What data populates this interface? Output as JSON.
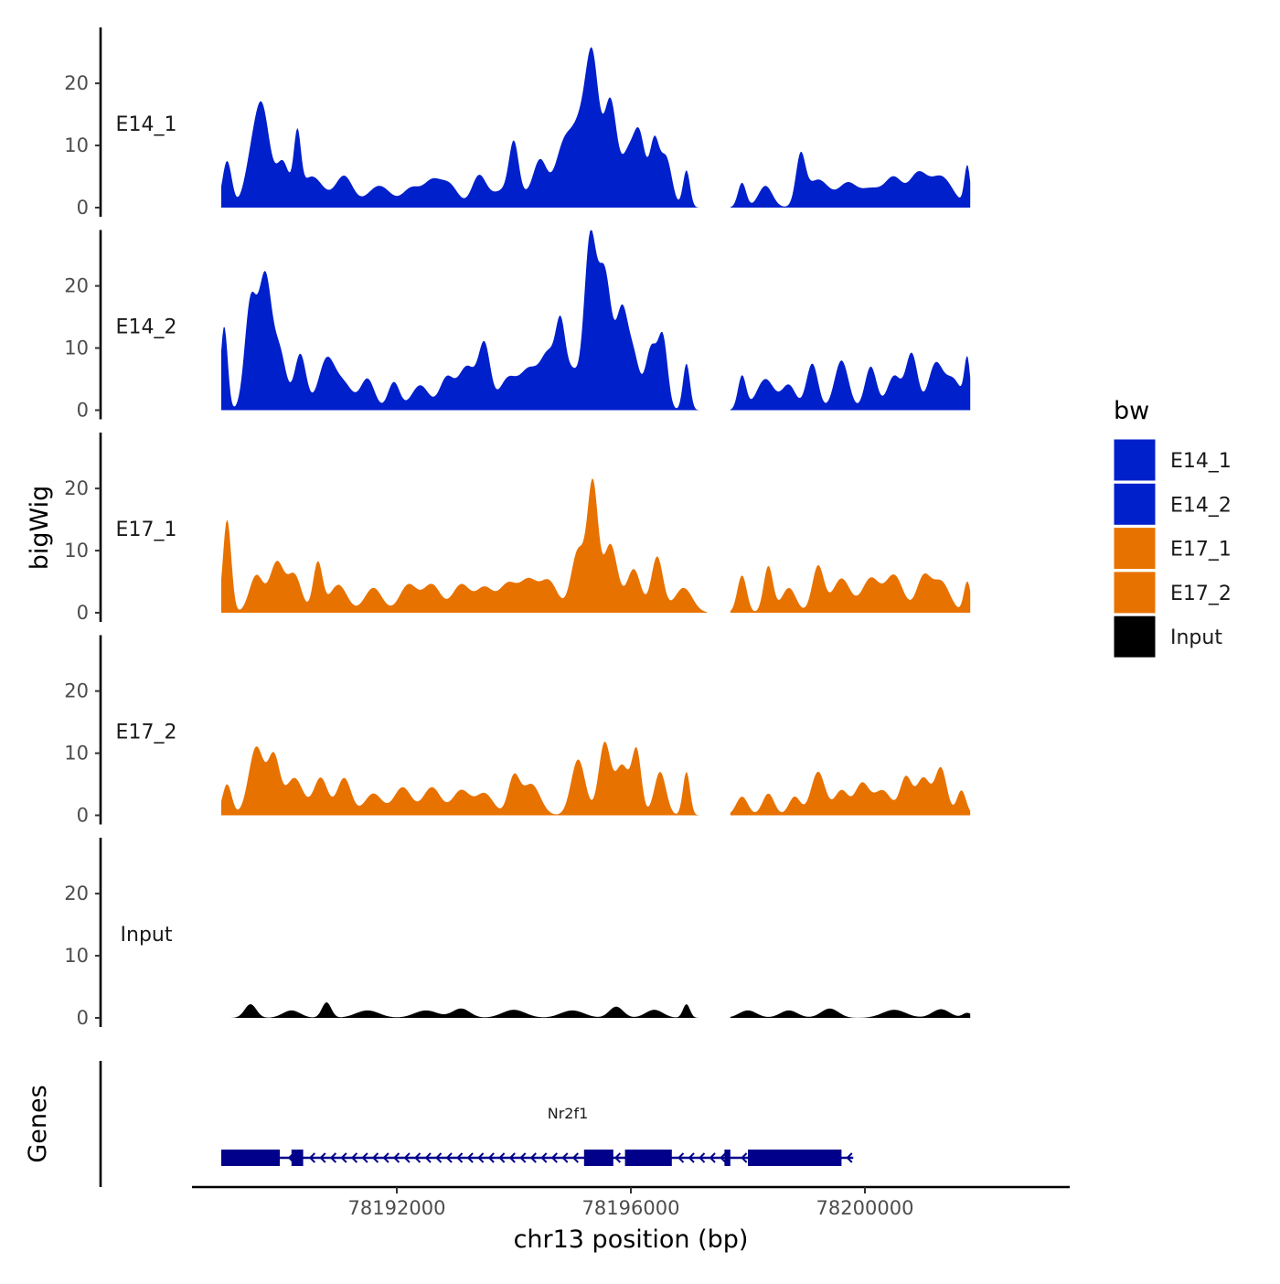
{
  "chart_data": {
    "type": "area",
    "facet_type": "genome-track",
    "ylabel": "bigWig",
    "xlabel": "chr13 position (bp)",
    "x_range": [
      78188500,
      78203500
    ],
    "xticks": [
      78192000,
      78196000,
      78200000
    ],
    "xtick_labels": [
      "78192000",
      "78196000",
      "78200000"
    ],
    "ylim": [
      0,
      29
    ],
    "yticks": [
      0,
      10,
      20
    ],
    "ytick_labels": [
      "0",
      "10",
      "20"
    ],
    "legend": {
      "title": "bw",
      "position": "right",
      "entries": [
        {
          "label": "E14_1",
          "color": "#0020CC"
        },
        {
          "label": "E14_2",
          "color": "#0020CC"
        },
        {
          "label": "E17_1",
          "color": "#E87200"
        },
        {
          "label": "E17_2",
          "color": "#E87200"
        },
        {
          "label": "Input",
          "color": "#000000"
        }
      ]
    },
    "x_start": 78189000,
    "x_end": 78201800,
    "gap": [
      78197300,
      78197700
    ],
    "series": [
      {
        "name": "E14_1",
        "label": "E14_1",
        "color": "#0020CC",
        "peaks": [
          [
            78189100,
            7.5,
            80
          ],
          [
            78189500,
            5.5,
            120
          ],
          [
            78189700,
            15.5,
            130
          ],
          [
            78190050,
            7,
            110
          ],
          [
            78190300,
            10,
            60
          ],
          [
            78190550,
            5,
            200
          ],
          [
            78191100,
            5,
            150
          ],
          [
            78191700,
            3.5,
            200
          ],
          [
            78192250,
            3,
            150
          ],
          [
            78192600,
            4,
            150
          ],
          [
            78192900,
            3.5,
            150
          ],
          [
            78193400,
            4.5,
            120
          ],
          [
            78193900,
            3,
            300
          ],
          [
            78194000,
            8,
            80
          ],
          [
            78194450,
            7,
            120
          ],
          [
            78194850,
            9.5,
            150
          ],
          [
            78195150,
            12,
            150
          ],
          [
            78195350,
            20,
            110
          ],
          [
            78195650,
            17,
            110
          ],
          [
            78195950,
            8,
            110
          ],
          [
            78196150,
            11,
            100
          ],
          [
            78196400,
            10,
            80
          ],
          [
            78196600,
            8,
            100
          ],
          [
            78196950,
            6,
            60
          ],
          [
            78197900,
            4,
            70
          ],
          [
            78198300,
            3.5,
            120
          ],
          [
            78198900,
            7.5,
            80
          ],
          [
            78199200,
            4.5,
            200
          ],
          [
            78199700,
            3.5,
            150
          ],
          [
            78200100,
            3,
            200
          ],
          [
            78200500,
            4.5,
            150
          ],
          [
            78200900,
            5,
            150
          ],
          [
            78201300,
            5,
            200
          ],
          [
            78201750,
            6.5,
            50
          ]
        ]
      },
      {
        "name": "E14_2",
        "label": "E14_2",
        "color": "#0020CC",
        "peaks": [
          [
            78189050,
            13.5,
            60
          ],
          [
            78189500,
            17,
            100
          ],
          [
            78189750,
            21,
            110
          ],
          [
            78190000,
            9,
            110
          ],
          [
            78190350,
            9,
            100
          ],
          [
            78190800,
            8,
            140
          ],
          [
            78191100,
            4,
            150
          ],
          [
            78191500,
            5,
            120
          ],
          [
            78191950,
            4.5,
            100
          ],
          [
            78192400,
            4,
            150
          ],
          [
            78192850,
            5,
            120
          ],
          [
            78193200,
            7,
            150
          ],
          [
            78193500,
            10,
            100
          ],
          [
            78193900,
            5,
            150
          ],
          [
            78194250,
            6,
            150
          ],
          [
            78194600,
            9,
            150
          ],
          [
            78194800,
            10,
            80
          ],
          [
            78195000,
            6,
            120
          ],
          [
            78195300,
            26,
            100
          ],
          [
            78195550,
            22,
            120
          ],
          [
            78195850,
            15,
            100
          ],
          [
            78196050,
            8,
            100
          ],
          [
            78196350,
            10,
            100
          ],
          [
            78196550,
            11,
            80
          ],
          [
            78196950,
            7.5,
            60
          ],
          [
            78197900,
            5.5,
            70
          ],
          [
            78198300,
            5,
            150
          ],
          [
            78198700,
            4,
            120
          ],
          [
            78199100,
            7.5,
            100
          ],
          [
            78199600,
            8,
            120
          ],
          [
            78200100,
            7,
            100
          ],
          [
            78200500,
            5.5,
            120
          ],
          [
            78200800,
            9,
            100
          ],
          [
            78201200,
            7,
            120
          ],
          [
            78201500,
            5,
            150
          ],
          [
            78201750,
            7.5,
            50
          ]
        ]
      },
      {
        "name": "E17_1",
        "label": "E17_1",
        "color": "#E87200",
        "peaks": [
          [
            78189100,
            15,
            70
          ],
          [
            78189600,
            6,
            120
          ],
          [
            78189950,
            8,
            120
          ],
          [
            78190250,
            6,
            120
          ],
          [
            78190650,
            8,
            80
          ],
          [
            78191000,
            4.5,
            150
          ],
          [
            78191600,
            4,
            150
          ],
          [
            78192200,
            4.5,
            150
          ],
          [
            78192600,
            4.5,
            150
          ],
          [
            78193100,
            4.5,
            150
          ],
          [
            78193500,
            4,
            150
          ],
          [
            78193900,
            4.5,
            150
          ],
          [
            78194250,
            5,
            150
          ],
          [
            78194600,
            5,
            150
          ],
          [
            78195100,
            10,
            120
          ],
          [
            78195350,
            20,
            90
          ],
          [
            78195650,
            11,
            120
          ],
          [
            78196050,
            7,
            120
          ],
          [
            78196450,
            9,
            100
          ],
          [
            78196900,
            4,
            150
          ],
          [
            78197900,
            6,
            80
          ],
          [
            78198350,
            7.5,
            80
          ],
          [
            78198700,
            4,
            120
          ],
          [
            78199200,
            7.5,
            100
          ],
          [
            78199600,
            5.5,
            150
          ],
          [
            78200100,
            5.5,
            150
          ],
          [
            78200500,
            6,
            150
          ],
          [
            78201000,
            5.5,
            120
          ],
          [
            78201300,
            5,
            150
          ],
          [
            78201750,
            5,
            60
          ]
        ]
      },
      {
        "name": "E17_2",
        "label": "E17_2",
        "color": "#E87200",
        "peaks": [
          [
            78189100,
            5,
            80
          ],
          [
            78189600,
            11,
            130
          ],
          [
            78189900,
            9,
            100
          ],
          [
            78190250,
            6,
            150
          ],
          [
            78190700,
            6,
            120
          ],
          [
            78191100,
            6,
            120
          ],
          [
            78191600,
            3.5,
            150
          ],
          [
            78192100,
            4.5,
            150
          ],
          [
            78192600,
            4.5,
            150
          ],
          [
            78193100,
            4,
            150
          ],
          [
            78193500,
            3.5,
            150
          ],
          [
            78194000,
            6,
            100
          ],
          [
            78194300,
            5,
            150
          ],
          [
            78195100,
            9,
            120
          ],
          [
            78195550,
            11.5,
            100
          ],
          [
            78195850,
            8,
            120
          ],
          [
            78196100,
            10,
            80
          ],
          [
            78196500,
            7,
            100
          ],
          [
            78196950,
            7,
            60
          ],
          [
            78197900,
            3,
            100
          ],
          [
            78198350,
            3.5,
            100
          ],
          [
            78198800,
            3,
            100
          ],
          [
            78199200,
            7,
            120
          ],
          [
            78199600,
            4,
            120
          ],
          [
            78199950,
            5,
            120
          ],
          [
            78200300,
            4,
            150
          ],
          [
            78200700,
            6,
            100
          ],
          [
            78201000,
            6,
            120
          ],
          [
            78201300,
            7.5,
            100
          ],
          [
            78201650,
            4,
            80
          ]
        ]
      },
      {
        "name": "Input",
        "label": "Input",
        "color": "#000000",
        "peaks": [
          [
            78189500,
            2.2,
            100
          ],
          [
            78190200,
            1.2,
            150
          ],
          [
            78190800,
            2.5,
            80
          ],
          [
            78191500,
            1.2,
            200
          ],
          [
            78192500,
            1.2,
            200
          ],
          [
            78193100,
            1.5,
            150
          ],
          [
            78194000,
            1.3,
            200
          ],
          [
            78195000,
            1.2,
            200
          ],
          [
            78195750,
            1.8,
            120
          ],
          [
            78196400,
            1.3,
            150
          ],
          [
            78196950,
            2.2,
            60
          ],
          [
            78198000,
            1.2,
            150
          ],
          [
            78198700,
            1.2,
            150
          ],
          [
            78199400,
            1.5,
            150
          ],
          [
            78200500,
            1.3,
            200
          ],
          [
            78201300,
            1.4,
            150
          ],
          [
            78201750,
            0.8,
            80
          ]
        ]
      }
    ],
    "genes": {
      "title": "Genes",
      "gene_name": "Nr2f1",
      "strand": "-",
      "color": "#00008B",
      "start": 78189000,
      "end": 78199800,
      "exons": [
        [
          78189000,
          78190000
        ],
        [
          78190200,
          78190400
        ],
        [
          78195200,
          78195700
        ],
        [
          78195900,
          78196700
        ],
        [
          78197600,
          78197700
        ],
        [
          78198000,
          78199600
        ]
      ]
    }
  }
}
